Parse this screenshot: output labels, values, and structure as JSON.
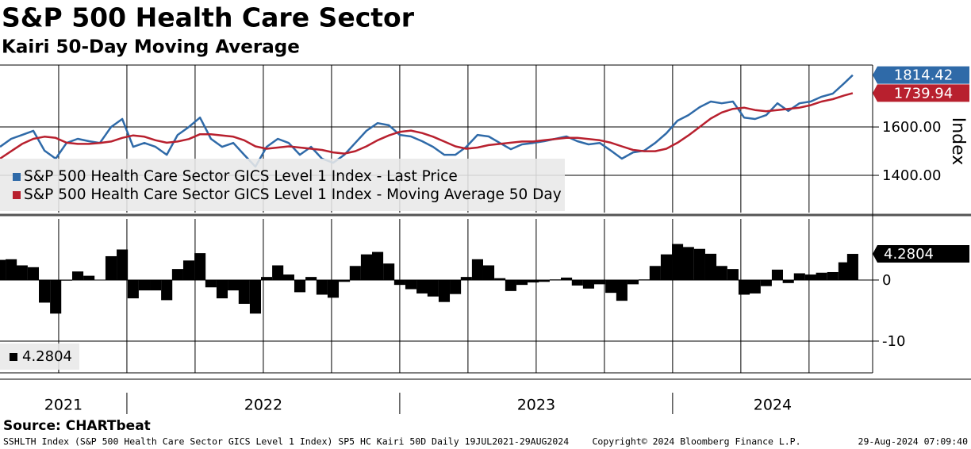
{
  "chart_data": [
    {
      "type": "line",
      "title": "S&P 500 Health Care Sector",
      "subtitle": "Kairi 50-Day Moving Average",
      "y_label": "Index",
      "legend": "lower left",
      "grid": true,
      "x": [
        2021.535,
        2021.576,
        2021.616,
        2021.657,
        2021.698,
        2021.739,
        2021.779,
        2021.82,
        2021.861,
        2021.901,
        2021.942,
        2021.983,
        2022.023,
        2022.064,
        2022.105,
        2022.146,
        2022.186,
        2022.227,
        2022.268,
        2022.308,
        2022.349,
        2022.39,
        2022.43,
        2022.471,
        2022.512,
        2022.553,
        2022.593,
        2022.634,
        2022.675,
        2022.715,
        2022.756,
        2022.797,
        2022.837,
        2022.878,
        2022.919,
        2022.96,
        2023.0,
        2023.041,
        2023.082,
        2023.122,
        2023.163,
        2023.204,
        2023.244,
        2023.285,
        2023.326,
        2023.367,
        2023.407,
        2023.448,
        2023.489,
        2023.529,
        2023.57,
        2023.611,
        2023.651,
        2023.692,
        2023.733,
        2023.774,
        2023.814,
        2023.855,
        2023.896,
        2023.936,
        2023.977,
        2024.018,
        2024.058,
        2024.099,
        2024.14,
        2024.18,
        2024.221,
        2024.262,
        2024.302,
        2024.343,
        2024.384,
        2024.424,
        2024.465,
        2024.506,
        2024.546,
        2024.587,
        2024.628,
        2024.66
      ],
      "series": [
        {
          "name": "S&P 500 Health Care Sector GICS Level 1 Index - Last Price",
          "color": "#2f6aa8",
          "values": [
            1518,
            1551,
            1567,
            1584,
            1502,
            1469,
            1534,
            1551,
            1541,
            1534,
            1600,
            1633,
            1518,
            1534,
            1518,
            1485,
            1567,
            1600,
            1639,
            1551,
            1518,
            1534,
            1485,
            1436,
            1518,
            1551,
            1534,
            1485,
            1518,
            1469,
            1452,
            1485,
            1534,
            1584,
            1616,
            1607,
            1567,
            1561,
            1541,
            1518,
            1485,
            1485,
            1518,
            1567,
            1561,
            1534,
            1508,
            1528,
            1534,
            1541,
            1551,
            1561,
            1541,
            1528,
            1534,
            1502,
            1469,
            1495,
            1502,
            1534,
            1574,
            1626,
            1649,
            1682,
            1705,
            1698,
            1705,
            1639,
            1633,
            1649,
            1698,
            1666,
            1698,
            1705,
            1725,
            1738,
            1780,
            1814.42
          ]
        },
        {
          "name": "S&P 500 Health Care Sector GICS Level 1 Index - Moving Average 50 Day",
          "color": "#b8202e",
          "values": [
            1469,
            1500,
            1530,
            1551,
            1560,
            1555,
            1535,
            1530,
            1530,
            1534,
            1540,
            1555,
            1565,
            1560,
            1545,
            1535,
            1540,
            1550,
            1570,
            1570,
            1565,
            1560,
            1545,
            1520,
            1510,
            1515,
            1520,
            1515,
            1510,
            1505,
            1495,
            1490,
            1500,
            1520,
            1545,
            1565,
            1580,
            1585,
            1575,
            1560,
            1540,
            1520,
            1510,
            1515,
            1525,
            1530,
            1535,
            1540,
            1540,
            1545,
            1550,
            1555,
            1555,
            1550,
            1545,
            1535,
            1520,
            1505,
            1500,
            1500,
            1510,
            1535,
            1565,
            1600,
            1635,
            1660,
            1675,
            1680,
            1670,
            1665,
            1670,
            1675,
            1680,
            1690,
            1705,
            1715,
            1730,
            1739.94
          ]
        }
      ],
      "xlim": [
        2021.535,
        2024.733
      ],
      "xticks": [
        2021.75,
        2022,
        2022.25,
        2022.5,
        2022.75,
        2023,
        2023.25,
        2023.5,
        2023.75,
        2024,
        2024.25,
        2024.5
      ],
      "x_labels": [
        "2021",
        "2022",
        "2023",
        "2024"
      ],
      "ylim": [
        1246,
        1856
      ],
      "yticks": [
        {
          "value": 1400,
          "label": "1400.00"
        },
        {
          "value": 1600,
          "label": "1600.00"
        }
      ]
    },
    {
      "type": "bar",
      "legend": "lower left",
      "grid": true,
      "x": [
        2021.535,
        2021.576,
        2021.616,
        2021.657,
        2021.698,
        2021.739,
        2021.779,
        2021.82,
        2021.861,
        2021.901,
        2021.942,
        2021.983,
        2022.023,
        2022.064,
        2022.105,
        2022.146,
        2022.186,
        2022.227,
        2022.268,
        2022.308,
        2022.349,
        2022.39,
        2022.43,
        2022.471,
        2022.512,
        2022.553,
        2022.593,
        2022.634,
        2022.675,
        2022.715,
        2022.756,
        2022.797,
        2022.837,
        2022.878,
        2022.919,
        2022.96,
        2023.0,
        2023.041,
        2023.082,
        2023.122,
        2023.163,
        2023.204,
        2023.244,
        2023.285,
        2023.326,
        2023.367,
        2023.407,
        2023.448,
        2023.489,
        2023.529,
        2023.57,
        2023.611,
        2023.651,
        2023.692,
        2023.733,
        2023.774,
        2023.814,
        2023.855,
        2023.896,
        2023.936,
        2023.977,
        2024.018,
        2024.058,
        2024.099,
        2024.14,
        2024.18,
        2024.221,
        2024.262,
        2024.302,
        2024.343,
        2024.384,
        2024.424,
        2024.465,
        2024.506,
        2024.546,
        2024.587,
        2024.628,
        2024.66
      ],
      "series": [
        {
          "color": "#000000",
          "values": [
            3.3,
            3.4,
            2.4,
            2.1,
            -3.7,
            -5.5,
            -0.1,
            1.4,
            0.7,
            0,
            3.9,
            5.0,
            -3.0,
            -1.7,
            -1.7,
            -3.3,
            1.8,
            3.2,
            4.4,
            -1.2,
            -3.0,
            -1.7,
            -3.9,
            -5.5,
            0.5,
            2.4,
            0.9,
            -2.0,
            0.5,
            -2.4,
            -2.9,
            -0.3,
            2.3,
            4.2,
            4.6,
            2.7,
            -0.8,
            -1.5,
            -2.2,
            -2.7,
            -3.6,
            -2.3,
            0.5,
            3.4,
            2.4,
            0.3,
            -1.8,
            -0.8,
            -0.4,
            -0.3,
            0.1,
            0.4,
            -0.9,
            -1.4,
            -0.7,
            -2.1,
            -3.4,
            -0.7,
            0.1,
            2.3,
            4.2,
            5.9,
            5.4,
            5.1,
            4.3,
            2.3,
            1.8,
            -2.4,
            -2.2,
            -1.0,
            1.7,
            -0.5,
            1.1,
            0.9,
            1.2,
            1.3,
            2.9,
            4.2804
          ]
        }
      ],
      "xlim": [
        2021.535,
        2024.733
      ],
      "ylim": [
        -15.2,
        10
      ],
      "yticks": [
        -10,
        0
      ]
    }
  ],
  "source": "Source: CHARTbeat",
  "footer": [
    "SSHLTH Index (S&P 500 Health Care Sector GICS Level 1 Index) SP5 HC Kairi 50D  Daily 19JUL2021-29AUG2024",
    "Copyright© 2024 Bloomberg Finance L.P.",
    "29-Aug-2024 07:09:40"
  ]
}
